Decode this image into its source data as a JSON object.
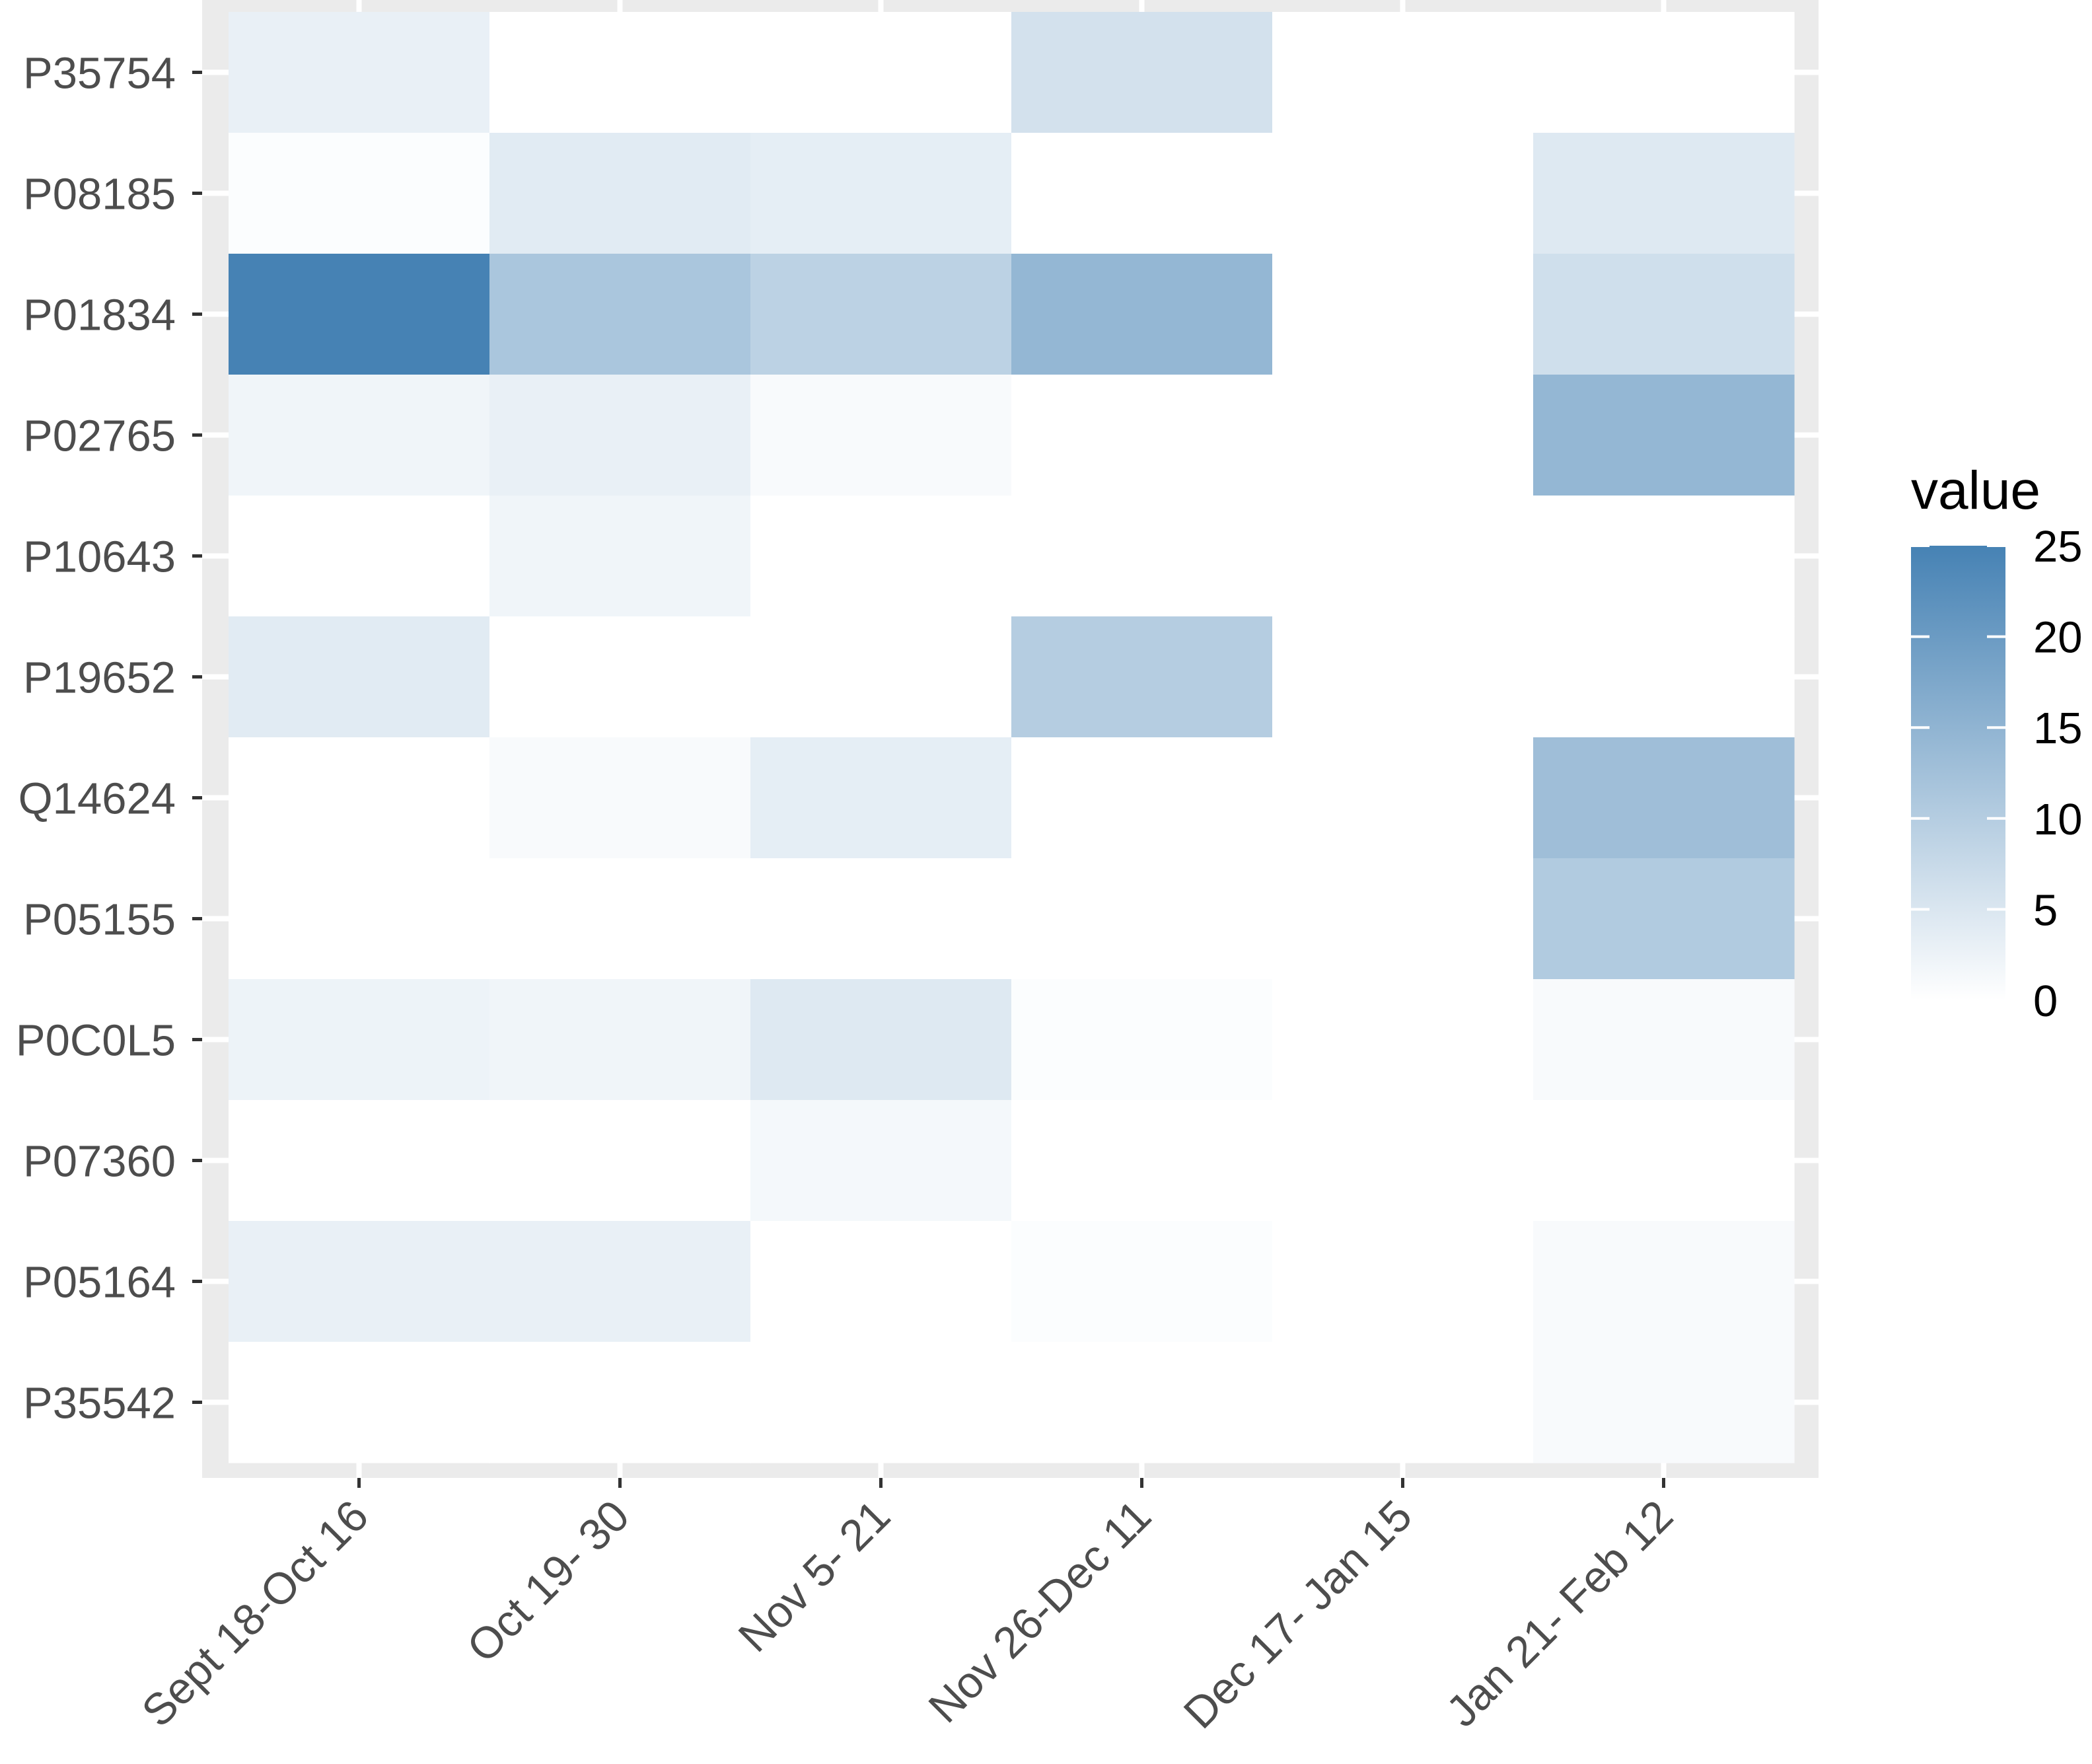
{
  "chart_data": {
    "type": "heatmap",
    "title": "",
    "xlabel": "",
    "ylabel": "",
    "x_categories": [
      "Sept 18-Oct 16",
      "Oct 19- 30",
      "Nov 5- 21",
      "Nov 26-Dec 11",
      "Dec 17- Jan 15",
      "Jan 21- Feb 12"
    ],
    "y_categories": [
      "P35754",
      "P08185",
      "P01834",
      "P02765",
      "P10643",
      "P19652",
      "Q14624",
      "P05155",
      "P0C0L5",
      "P07360",
      "P05164",
      "P35542"
    ],
    "values": [
      [
        3,
        0,
        0,
        6,
        0,
        0
      ],
      [
        0.5,
        4,
        3.5,
        0,
        0,
        4.5
      ],
      [
        25,
        11.5,
        9,
        14.5,
        0,
        6.5
      ],
      [
        2,
        3,
        1,
        0,
        0,
        14.5
      ],
      [
        0,
        2,
        0,
        0,
        0,
        0
      ],
      [
        4,
        0,
        0,
        10,
        0,
        0
      ],
      [
        0,
        1,
        3.5,
        0,
        0,
        13
      ],
      [
        0,
        0,
        0,
        0,
        0,
        10.5
      ],
      [
        2.5,
        2,
        4.5,
        0.5,
        0,
        1
      ],
      [
        0,
        0,
        1.5,
        0,
        0,
        0
      ],
      [
        3,
        3,
        0,
        0.5,
        0,
        1
      ],
      [
        0,
        0,
        0,
        0,
        0,
        1
      ]
    ],
    "legend": {
      "title": "value",
      "ticks": [
        0,
        5,
        10,
        15,
        20,
        25
      ],
      "tick_labels": [
        "0",
        "5",
        "10",
        "15",
        "20",
        "25"
      ],
      "position": "right"
    },
    "color_range": [
      0,
      25
    ],
    "colors": {
      "low": "#ffffff",
      "high": "#4682b4",
      "panel_background": "#ebebeb",
      "grid": "#ffffff",
      "tick_label": "#4d4d4d"
    },
    "grid": true
  }
}
